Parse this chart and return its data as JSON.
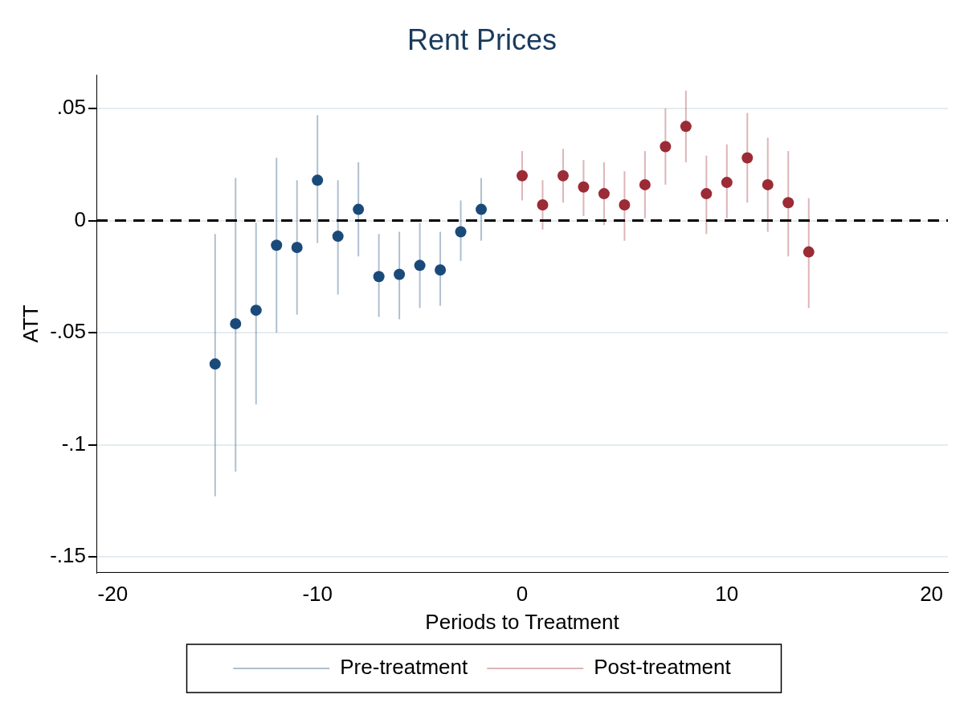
{
  "chart_data": {
    "type": "scatter",
    "title": "Rent Prices",
    "xlabel": "Periods to Treatment",
    "ylabel": "ATT",
    "xlim": [
      -20.8,
      20.8
    ],
    "xticks": [
      -20,
      -10,
      0,
      10,
      20
    ],
    "ylim": [
      -0.157,
      0.065
    ],
    "yticks": [
      {
        "value": 0.05,
        "label": ".05"
      },
      0,
      {
        "value": -0.05,
        "label": "-.05"
      },
      {
        "value": -0.1,
        "label": "-.1"
      },
      {
        "value": -0.15,
        "label": "-.15"
      }
    ],
    "grid": "y",
    "legend": "bottom",
    "marker": "circle",
    "ref_lines": [
      {
        "axis": "y",
        "value": 0,
        "color": "#000000",
        "line_style": "dashed"
      }
    ],
    "series": [
      {
        "name": "Pre-treatment",
        "color": "#1a4a7a",
        "x": [
          -15,
          -14,
          -13,
          -12,
          -11,
          -10,
          -9,
          -8,
          -7,
          -6,
          -5,
          -4,
          -3,
          -2
        ],
        "values": [
          -0.064,
          -0.046,
          -0.04,
          -0.011,
          -0.012,
          0.018,
          -0.007,
          0.005,
          -0.025,
          -0.024,
          -0.02,
          -0.022,
          -0.005,
          0.005
        ],
        "errors": [
          [
            -0.123,
            -0.006
          ],
          [
            -0.112,
            0.019
          ],
          [
            -0.082,
            -0.001
          ],
          [
            -0.05,
            0.028
          ],
          [
            -0.042,
            0.018
          ],
          [
            -0.01,
            0.047
          ],
          [
            -0.033,
            0.018
          ],
          [
            -0.016,
            0.026
          ],
          [
            -0.043,
            -0.006
          ],
          [
            -0.044,
            -0.005
          ],
          [
            -0.039,
            -0.001
          ],
          [
            -0.038,
            -0.005
          ],
          [
            -0.018,
            0.009
          ],
          [
            -0.009,
            0.019
          ]
        ]
      },
      {
        "name": "Post-treatment",
        "color": "#9b2b35",
        "x": [
          0,
          1,
          2,
          3,
          4,
          5,
          6,
          7,
          8,
          9,
          10,
          11,
          12,
          13,
          14
        ],
        "values": [
          0.02,
          0.007,
          0.02,
          0.015,
          0.012,
          0.007,
          0.016,
          0.033,
          0.042,
          0.012,
          0.017,
          0.028,
          0.016,
          0.008,
          -0.014
        ],
        "errors": [
          [
            0.009,
            0.031
          ],
          [
            -0.004,
            0.018
          ],
          [
            0.008,
            0.032
          ],
          [
            0.002,
            0.027
          ],
          [
            -0.002,
            0.026
          ],
          [
            -0.009,
            0.022
          ],
          [
            0.001,
            0.031
          ],
          [
            0.016,
            0.05
          ],
          [
            0.026,
            0.058
          ],
          [
            -0.006,
            0.029
          ],
          [
            0.001,
            0.034
          ],
          [
            0.008,
            0.048
          ],
          [
            -0.005,
            0.037
          ],
          [
            -0.016,
            0.031
          ],
          [
            -0.039,
            0.01
          ]
        ]
      }
    ]
  }
}
